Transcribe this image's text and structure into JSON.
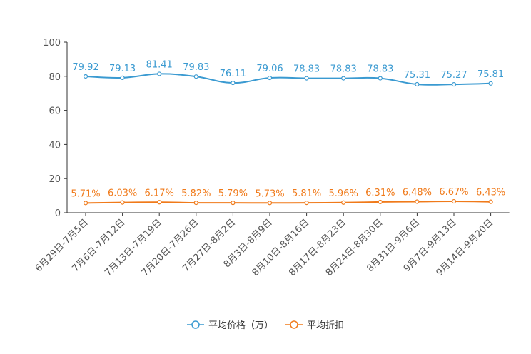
{
  "chart_data": {
    "type": "line",
    "categories": [
      "6月29日-7月5日",
      "7月6日-7月12日",
      "7月13日-7月19日",
      "7月20日-7月26日",
      "7月27日-8月2日",
      "8月3日-8月9日",
      "8月10日-8月16日",
      "8月17日-8月23日",
      "8月24日-8月30日",
      "8月31日-9月6日",
      "9月7日-9月13日",
      "9月14日-9月20日"
    ],
    "ylim": [
      0,
      100
    ],
    "yticks": [
      0,
      20,
      40,
      60,
      80,
      100
    ],
    "series": [
      {
        "name": "平均价格（万）",
        "color": "#3a9ad1",
        "values": [
          79.92,
          79.13,
          81.41,
          79.83,
          76.11,
          79.06,
          78.83,
          78.83,
          78.83,
          75.31,
          75.27,
          75.81
        ],
        "labels": [
          "79.92",
          "79.13",
          "81.41",
          "79.83",
          "76.11",
          "79.06",
          "78.83",
          "78.83",
          "78.83",
          "75.31",
          "75.27",
          "75.81"
        ]
      },
      {
        "name": "平均折扣",
        "color": "#f07a1a",
        "values": [
          5.71,
          6.03,
          6.17,
          5.82,
          5.79,
          5.73,
          5.81,
          5.96,
          6.31,
          6.48,
          6.67,
          6.43
        ],
        "labels": [
          "5.71%",
          "6.03%",
          "6.17%",
          "5.82%",
          "5.79%",
          "5.73%",
          "5.81%",
          "5.96%",
          "6.31%",
          "6.48%",
          "6.67%",
          "6.43%"
        ]
      }
    ],
    "legend_position": "bottom-center",
    "grid": false
  }
}
